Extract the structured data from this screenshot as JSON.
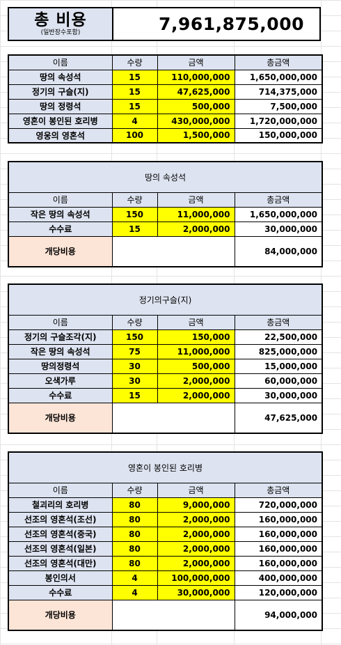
{
  "summary": {
    "label": "총 비용",
    "sublabel": "(일반장수포함)",
    "value": "7,961,875,000"
  },
  "headers": {
    "name": "이름",
    "qty": "수량",
    "price": "금액",
    "total": "총금액"
  },
  "main": {
    "rows": [
      {
        "name": "땅의 속성석",
        "qty": "15",
        "price": "110,000,000",
        "total": "1,650,000,000"
      },
      {
        "name": "정기의 구슬(지)",
        "qty": "15",
        "price": "47,625,000",
        "total": "714,375,000"
      },
      {
        "name": "땅의 정령석",
        "qty": "15",
        "price": "500,000",
        "total": "7,500,000"
      },
      {
        "name": "영혼이 봉인된 호리병",
        "qty": "4",
        "price": "430,000,000",
        "total": "1,720,000,000"
      },
      {
        "name": "영웅의 영혼석",
        "qty": "100",
        "price": "1,500,000",
        "total": "150,000,000"
      }
    ]
  },
  "sections": [
    {
      "title": "땅의 속성석",
      "rows": [
        {
          "name": "작은 땅의 속성석",
          "qty": "150",
          "price": "11,000,000",
          "total": "1,650,000,000"
        },
        {
          "name": "수수료",
          "qty": "15",
          "price": "2,000,000",
          "total": "30,000,000"
        }
      ],
      "cost_label": "개당비용",
      "cost_value": "84,000,000"
    },
    {
      "title": "정기의구슬(지)",
      "rows": [
        {
          "name": "정기의 구슬조각(지)",
          "qty": "150",
          "price": "150,000",
          "total": "22,500,000"
        },
        {
          "name": "작은 땅의 속성석",
          "qty": "75",
          "price": "11,000,000",
          "total": "825,000,000"
        },
        {
          "name": "땅의정령석",
          "qty": "30",
          "price": "500,000",
          "total": "15,000,000"
        },
        {
          "name": "오색가루",
          "qty": "30",
          "price": "2,000,000",
          "total": "60,000,000"
        },
        {
          "name": "수수료",
          "qty": "15",
          "price": "2,000,000",
          "total": "30,000,000"
        }
      ],
      "cost_label": "개당비용",
      "cost_value": "47,625,000"
    },
    {
      "title": "영혼이 봉인된 호리병",
      "rows": [
        {
          "name": "철괴리의 호리병",
          "qty": "80",
          "price": "9,000,000",
          "total": "720,000,000"
        },
        {
          "name": "선조의 영혼석(조선)",
          "qty": "80",
          "price": "2,000,000",
          "total": "160,000,000"
        },
        {
          "name": "선조의 영혼석(중국)",
          "qty": "80",
          "price": "2,000,000",
          "total": "160,000,000"
        },
        {
          "name": "선조의 영혼석(일본)",
          "qty": "80",
          "price": "2,000,000",
          "total": "160,000,000"
        },
        {
          "name": "선조의 영혼석(대만)",
          "qty": "80",
          "price": "2,000,000",
          "total": "160,000,000"
        },
        {
          "name": "봉인의서",
          "qty": "4",
          "price": "100,000,000",
          "total": "400,000,000"
        },
        {
          "name": "수수료",
          "qty": "4",
          "price": "30,000,000",
          "total": "120,000,000"
        }
      ],
      "cost_label": "개당비용",
      "cost_value": "94,000,000"
    }
  ]
}
